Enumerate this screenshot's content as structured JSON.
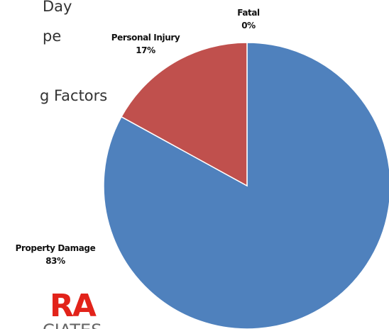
{
  "slide": {
    "bullets": [
      "Day",
      "pe",
      "g Factors"
    ],
    "logo": "RA",
    "logo_subtitle": "CIATES"
  },
  "chart_data": {
    "type": "pie",
    "categories": [
      "Fatal",
      "Property Damage",
      "Personal Injury"
    ],
    "values": [
      0,
      83,
      17
    ],
    "value_labels": [
      "0%",
      "83%",
      "17%"
    ],
    "colors": [
      "#4f81bd",
      "#4f81bd",
      "#c0504d"
    ]
  }
}
